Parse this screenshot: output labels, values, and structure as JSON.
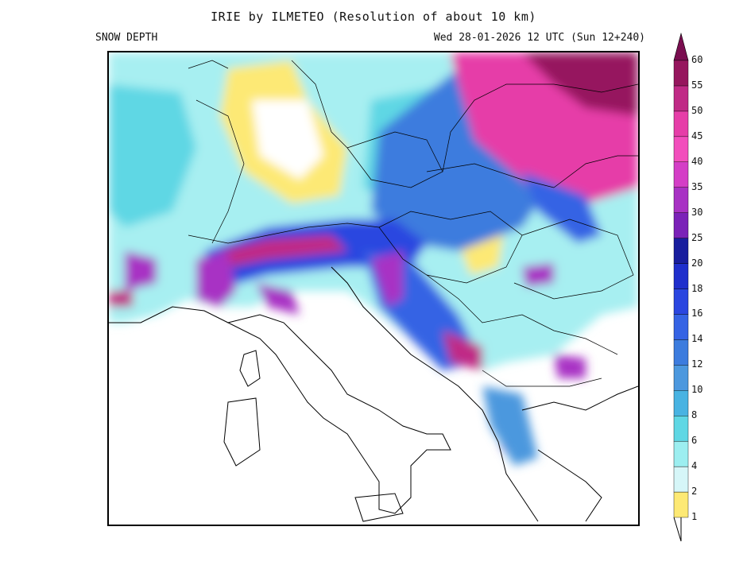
{
  "header": {
    "title": "IRIE by ILMETEO (Resolution of about 10 km)",
    "field": "SNOW DEPTH",
    "valid_time": "Wed 28-01-2026 12 UTC (Sun 12+240)"
  },
  "legend": {
    "levels": [
      "1",
      "2",
      "4",
      "6",
      "8",
      "10",
      "12",
      "14",
      "16",
      "18",
      "20",
      "25",
      "30",
      "35",
      "40",
      "45",
      "50",
      "55",
      "60"
    ],
    "colors": [
      "#fde974",
      "#d6f6f8",
      "#9ceef0",
      "#5fd7e4",
      "#48b3e2",
      "#4c98de",
      "#3c7cde",
      "#3563e4",
      "#2a46e0",
      "#1f2fcc",
      "#191e9e",
      "#7b22b8",
      "#a832c4",
      "#d43ec6",
      "#f24ebc",
      "#e63ea8",
      "#c02a86",
      "#96165e"
    ]
  }
}
